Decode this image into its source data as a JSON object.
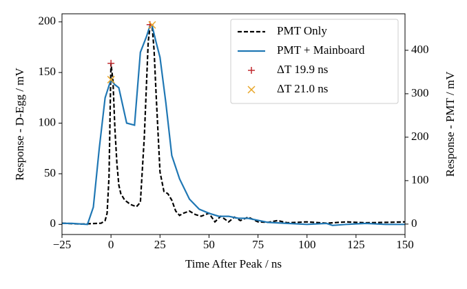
{
  "chart_data": {
    "type": "line",
    "xlabel": "Time After Peak / ns",
    "ylabel": "Response - D-Egg / mV",
    "y2label": "Response - PMT / mV",
    "xlim": [
      -25,
      150
    ],
    "ylim": [
      -10,
      208
    ],
    "y2lim": [
      -24,
      484
    ],
    "xticks": [
      {
        "value": -25,
        "label": "−25"
      },
      0,
      25,
      50,
      75,
      100,
      125,
      150
    ],
    "yticks": [
      0,
      50,
      100,
      150,
      200
    ],
    "y2ticks": [
      0,
      100,
      200,
      300,
      400
    ],
    "legend": "upper right",
    "series": [
      {
        "name": "PMT Only",
        "color": "#000000",
        "linestyle": "dashed",
        "axis": "y2",
        "x": [
          -25,
          -15,
          -5,
          -3,
          -2,
          -1,
          0,
          1,
          2,
          3,
          4,
          5,
          7,
          10,
          13,
          15,
          17,
          19,
          20,
          21,
          22,
          23,
          25,
          27,
          29,
          31,
          33,
          35,
          37,
          40,
          43,
          46,
          50,
          53,
          56,
          60,
          63,
          66,
          70,
          75,
          80,
          85,
          90,
          100,
          110,
          120,
          130,
          140,
          150
        ],
        "values": [
          2,
          0,
          2,
          8,
          25,
          110,
          370,
          330,
          220,
          140,
          90,
          70,
          55,
          45,
          40,
          50,
          200,
          420,
          458,
          455,
          400,
          300,
          120,
          75,
          70,
          55,
          30,
          20,
          25,
          30,
          22,
          18,
          25,
          5,
          18,
          5,
          16,
          8,
          16,
          5,
          4,
          8,
          3,
          5,
          2,
          5,
          3,
          4,
          5
        ]
      },
      {
        "name": "PMT + Mainboard",
        "color": "#1f77b4",
        "linestyle": "solid",
        "axis": "y",
        "x": [
          -25,
          -20,
          -12,
          -9,
          -6,
          -3,
          0,
          2,
          4,
          8,
          12,
          15,
          18,
          20,
          21,
          23,
          25,
          28,
          31,
          35,
          40,
          45,
          50,
          55,
          60,
          65,
          70,
          75,
          80,
          90,
          100,
          110,
          113,
          120,
          130,
          140,
          150
        ],
        "values": [
          1,
          1,
          0,
          17,
          75,
          125,
          143,
          138,
          135,
          100,
          98,
          170,
          185,
          197,
          196,
          180,
          165,
          120,
          68,
          45,
          25,
          15,
          11,
          8,
          8,
          6,
          6,
          4,
          2,
          1,
          0,
          1,
          -1,
          0,
          1,
          0,
          0
        ]
      }
    ],
    "markers": [
      {
        "name": "ΔT 19.9 ns",
        "color": "#c0282d",
        "symbol": "+",
        "axis": "y2",
        "x": [
          0,
          19.9
        ],
        "values": [
          370,
          459
        ]
      },
      {
        "name": "ΔT 21.0 ns",
        "color": "#e8a628",
        "symbol": "x",
        "axis": "y",
        "x": [
          0,
          21
        ],
        "values": [
          143,
          197
        ]
      }
    ]
  }
}
